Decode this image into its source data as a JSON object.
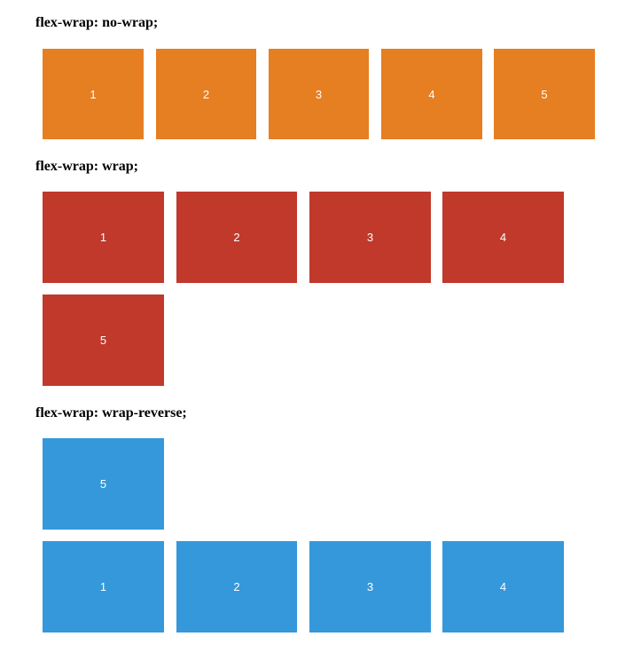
{
  "sections": [
    {
      "heading": "flex-wrap: no-wrap;",
      "color": "#e67e22",
      "items": [
        "1",
        "2",
        "3",
        "4",
        "5"
      ]
    },
    {
      "heading": "flex-wrap: wrap;",
      "color": "#c0392b",
      "items": [
        "1",
        "2",
        "3",
        "4",
        "5"
      ]
    },
    {
      "heading": "flex-wrap: wrap-reverse;",
      "color": "#3498db",
      "items": [
        "1",
        "2",
        "3",
        "4",
        "5"
      ]
    }
  ]
}
